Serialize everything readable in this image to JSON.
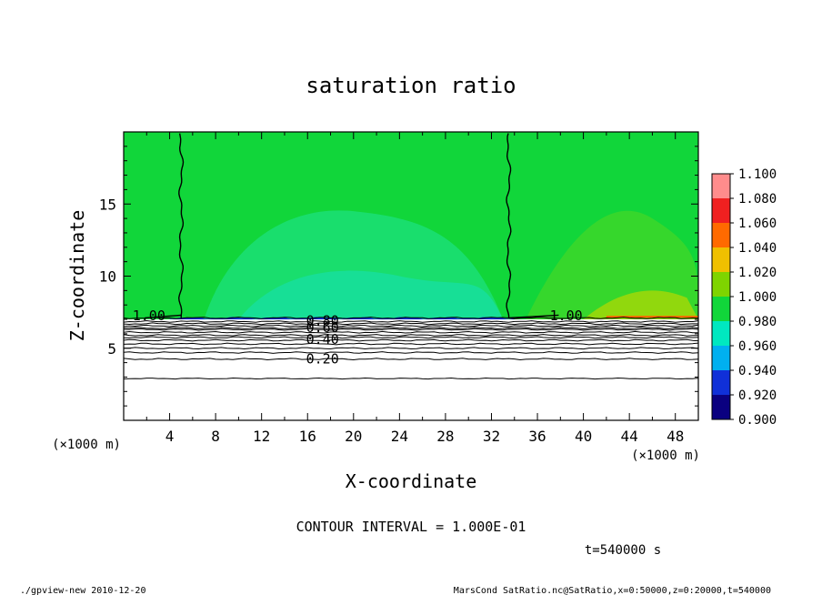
{
  "chart_data": {
    "type": "heatmap",
    "title": "saturation ratio",
    "xlabel": "X-coordinate",
    "ylabel": "Z-coordinate",
    "x_unit_left": "(×1000 m)",
    "x_unit_right": "(×1000 m)",
    "xlim": [
      0,
      50
    ],
    "ylim": [
      0,
      20
    ],
    "xticks": [
      4,
      8,
      12,
      16,
      20,
      24,
      28,
      32,
      36,
      40,
      44,
      48
    ],
    "yticks": [
      5,
      10,
      15
    ],
    "colorbar": {
      "levels": [
        "0.900",
        "0.920",
        "0.940",
        "0.960",
        "0.980",
        "1.000",
        "1.020",
        "1.040",
        "1.060",
        "1.080",
        "1.100"
      ],
      "colors": [
        "#7b00a8",
        "#0a0080",
        "#1030d8",
        "#00b0f0",
        "#00e8c0",
        "#11d63a",
        "#7fd400",
        "#f0c000",
        "#ff6a00",
        "#f02020",
        "#ff8c8c"
      ]
    },
    "fill": {
      "top_color": "#22d84a",
      "upper_region_color": "#11d63a",
      "boundary_color": "#1030d8",
      "bottom_color": "#ffffff",
      "saturation_layer_base_km": 7.0
    },
    "contour_lines": [
      {
        "label": "1.00",
        "z": 7.1
      },
      {
        "label": "0.80",
        "z": 6.85
      },
      {
        "label": "0.60",
        "z": 6.3
      },
      {
        "label": "0.40",
        "z": 5.55
      },
      {
        "label": "0.20",
        "z": 4.25
      }
    ],
    "contour_labels_shown": [
      "1.00",
      "0.80",
      "0.60",
      "0.40",
      "0.20",
      "1.00"
    ],
    "vertical_contour_x": [
      5,
      33.5
    ],
    "contour_interval_text": "CONTOUR INTERVAL = 1.000E-01",
    "time_text": "t=540000 s"
  },
  "footer": {
    "left": "./gpview-new  2010-12-20",
    "right": "MarsCond_SatRatio.nc@SatRatio,x=0:50000,z=0:20000,t=540000"
  }
}
